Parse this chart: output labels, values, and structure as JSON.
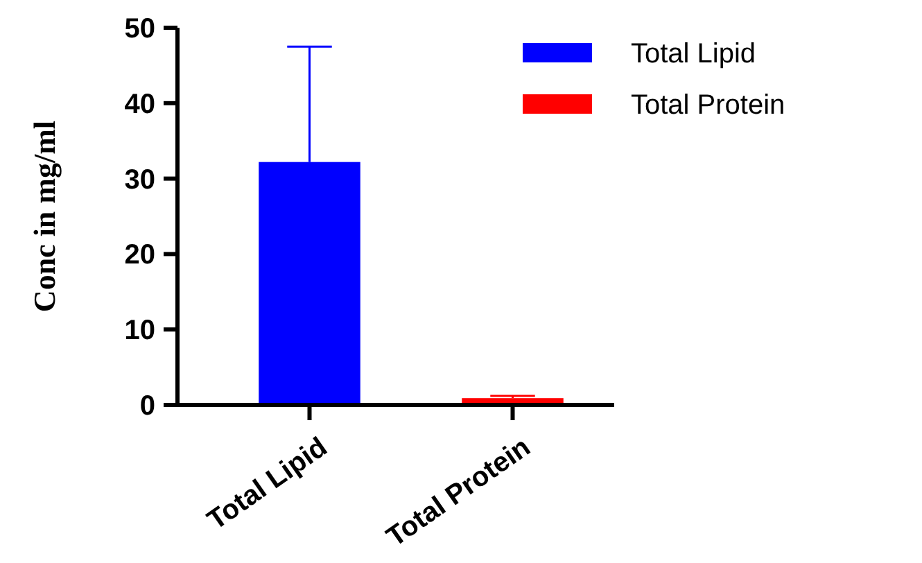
{
  "chart_data": {
    "type": "bar",
    "ylabel": "Conc in mg/ml",
    "categories": [
      "Total Lipid",
      "Total Protein"
    ],
    "series": [
      {
        "name": "Total Lipid",
        "color": "#0000ff",
        "values": [
          32.2,
          null
        ],
        "errors": [
          [
            32.2,
            47.5
          ],
          null
        ]
      },
      {
        "name": "Total Protein",
        "color": "#ff0000",
        "values": [
          null,
          0.9
        ],
        "errors": [
          null,
          [
            0.9,
            1.2
          ]
        ]
      }
    ],
    "ylim": [
      0,
      50
    ],
    "yticks": [
      0,
      10,
      20,
      30,
      40,
      50
    ],
    "legend": "top right"
  }
}
